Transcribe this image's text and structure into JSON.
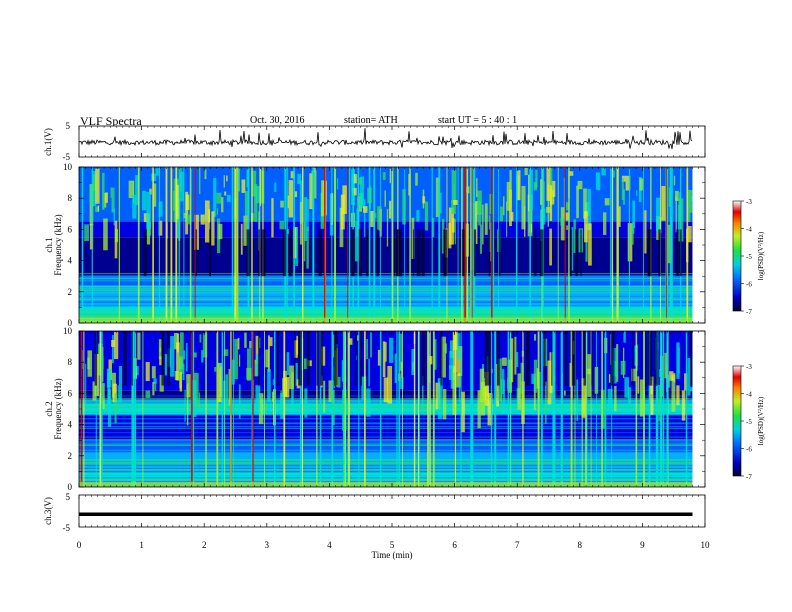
{
  "header": {
    "title": "VLF  Spectra",
    "date": "Oct. 30, 2016",
    "station": "station= ATH",
    "start": "start  UT  =    5  : 40 : 1"
  },
  "chart_data": [
    {
      "type": "line",
      "ylabel": "ch.1(V)",
      "yticks": [
        "5",
        "-5"
      ],
      "ylim": [
        -5,
        5
      ],
      "description_level": -0.3,
      "xlim": [
        0,
        10
      ]
    },
    {
      "type": "heatmap",
      "ylabel": "Frequency  (kHz)",
      "channel_label": "ch.1",
      "ylim": [
        0,
        10
      ],
      "yticks": [
        "0",
        "2",
        "4",
        "6",
        "8",
        "10"
      ],
      "colorbar": {
        "label": "log(PSD)(V²/Hz)",
        "ticks": [
          "-3",
          "-4",
          "-5",
          "-6",
          "-7"
        ],
        "range": [
          -7,
          -3
        ]
      }
    },
    {
      "type": "heatmap",
      "ylabel": "Frequency  (kHz)",
      "channel_label": "ch.2",
      "ylim": [
        0,
        10
      ],
      "yticks": [
        "0",
        "2",
        "4",
        "6",
        "8",
        "10"
      ],
      "colorbar": {
        "label": "log(PSD)(V²/Hz)",
        "ticks": [
          "-3",
          "-4",
          "-5",
          "-6",
          "-7"
        ],
        "range": [
          -7,
          -3
        ]
      }
    },
    {
      "type": "line",
      "ylabel": "ch.3(V)",
      "yticks": [
        "5",
        "-5"
      ],
      "ylim": [
        -5,
        5
      ],
      "level": -1,
      "xlim": [
        0,
        10
      ]
    }
  ],
  "xaxis": {
    "label": "Time  (min)",
    "ticks": [
      "0",
      "1",
      "2",
      "3",
      "4",
      "5",
      "6",
      "7",
      "8",
      "9",
      "10"
    ],
    "xlim": [
      0,
      10
    ],
    "data_end": 9.8
  }
}
